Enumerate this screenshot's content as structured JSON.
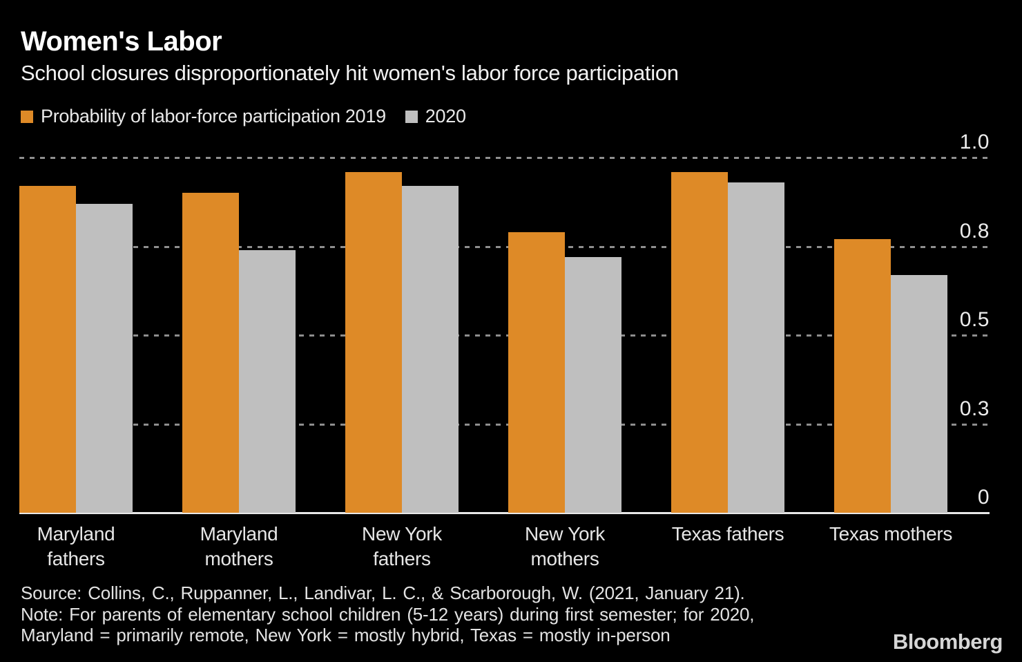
{
  "header": {
    "title": "Women's Labor",
    "subtitle": "School closures disproportionately hit women's labor force participation"
  },
  "legend": [
    {
      "label": "Probability of labor-force participation 2019",
      "color": "#DE8A27"
    },
    {
      "label": "2020",
      "color": "#BFBFBF"
    }
  ],
  "chart_data": {
    "type": "bar",
    "title": "Women's Labor",
    "subtitle": "School closures disproportionately hit women's labor force participation",
    "categories": [
      "Maryland fathers",
      "Maryland mothers",
      "New York fathers",
      "New York mothers",
      "Texas fathers",
      "Texas mothers"
    ],
    "category_label_lines": [
      [
        "Maryland",
        "fathers"
      ],
      [
        "Maryland",
        "mothers"
      ],
      [
        "New York",
        "fathers"
      ],
      [
        "New York",
        "mothers"
      ],
      [
        "Texas fathers"
      ],
      [
        "Texas mothers"
      ]
    ],
    "series": [
      {
        "name": "Probability of labor-force participation 2019",
        "color": "#DE8A27",
        "values": [
          0.92,
          0.9,
          0.96,
          0.79,
          0.96,
          0.77
        ]
      },
      {
        "name": "2020",
        "color": "#BFBFBF",
        "values": [
          0.87,
          0.74,
          0.92,
          0.72,
          0.93,
          0.67
        ]
      }
    ],
    "ylim": [
      0,
      1.0
    ],
    "yticks": [
      {
        "value": 1.0,
        "label": "1.0"
      },
      {
        "value": 0.75,
        "label": "0.8"
      },
      {
        "value": 0.5,
        "label": "0.5"
      },
      {
        "value": 0.25,
        "label": "0.3"
      },
      {
        "value": 0,
        "label": "0"
      }
    ],
    "grid": "horizontal dotted, behind bars",
    "legend_position": "top-left",
    "axis_labels_position": "right"
  },
  "footer": {
    "lines": [
      "Source: Collins, C., Ruppanner, L., Landivar, L. C., & Scarborough, W. (2021, January 21).",
      "Note: For parents of elementary school children (5-12 years) during first semester; for 2020,",
      "Maryland = primarily remote, New York = mostly hybrid, Texas = mostly in-person"
    ],
    "brand": "Bloomberg"
  },
  "colors": {
    "background": "#000000",
    "series_2019": "#DE8A27",
    "series_2020": "#BFBFBF",
    "gridline": "#8E8E8E",
    "baseline": "#E8E8E8",
    "text": "#FFFFFF"
  }
}
